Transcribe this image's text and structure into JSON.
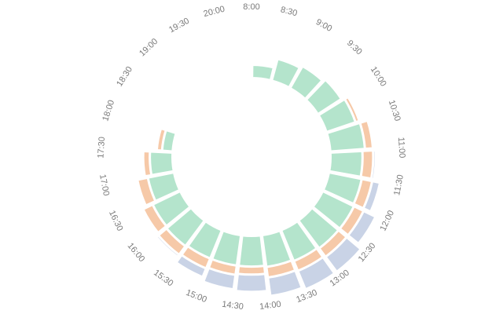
{
  "chart_data": {
    "type": "bar",
    "polar": true,
    "stacked": true,
    "angle_categories": [
      "8:00",
      "8:30",
      "9:00",
      "9:30",
      "10:00",
      "10:30",
      "11:00",
      "11:30",
      "12:00",
      "12:30",
      "13:00",
      "13:30",
      "14:00",
      "14:30",
      "15:00",
      "15:30",
      "16:00",
      "16:30",
      "17:00",
      "17:30",
      "18:00",
      "18:30",
      "19:00",
      "19:30",
      "20:00"
    ],
    "series": [
      {
        "color": "#b4e4cc",
        "values": [
          1.0,
          1.7,
          1.9,
          2.1,
          2.3,
          2.6,
          2.4,
          2.5,
          2.6,
          2.6,
          2.5,
          2.4,
          2.3,
          2.3,
          2.3,
          2.4,
          2.3,
          2.0,
          1.7,
          0.8,
          0,
          0,
          0,
          0,
          0
        ]
      },
      {
        "color": "#f6c9a8",
        "values": [
          0,
          0,
          0,
          0,
          0.3,
          0.6,
          0.8,
          0.8,
          0.8,
          0.8,
          0.8,
          0.8,
          0.6,
          0.7,
          0.8,
          0.8,
          0.8,
          0.8,
          0.5,
          0.4,
          0,
          0,
          0,
          0,
          0
        ]
      },
      {
        "color": "#c9d3e6",
        "values": [
          0,
          0,
          0,
          0,
          0,
          0,
          0.2,
          0.6,
          1.0,
          1.4,
          1.5,
          1.4,
          1.3,
          1.1,
          0.7,
          0.2,
          0,
          0,
          0,
          0,
          0,
          0,
          0,
          0,
          0
        ]
      }
    ]
  }
}
